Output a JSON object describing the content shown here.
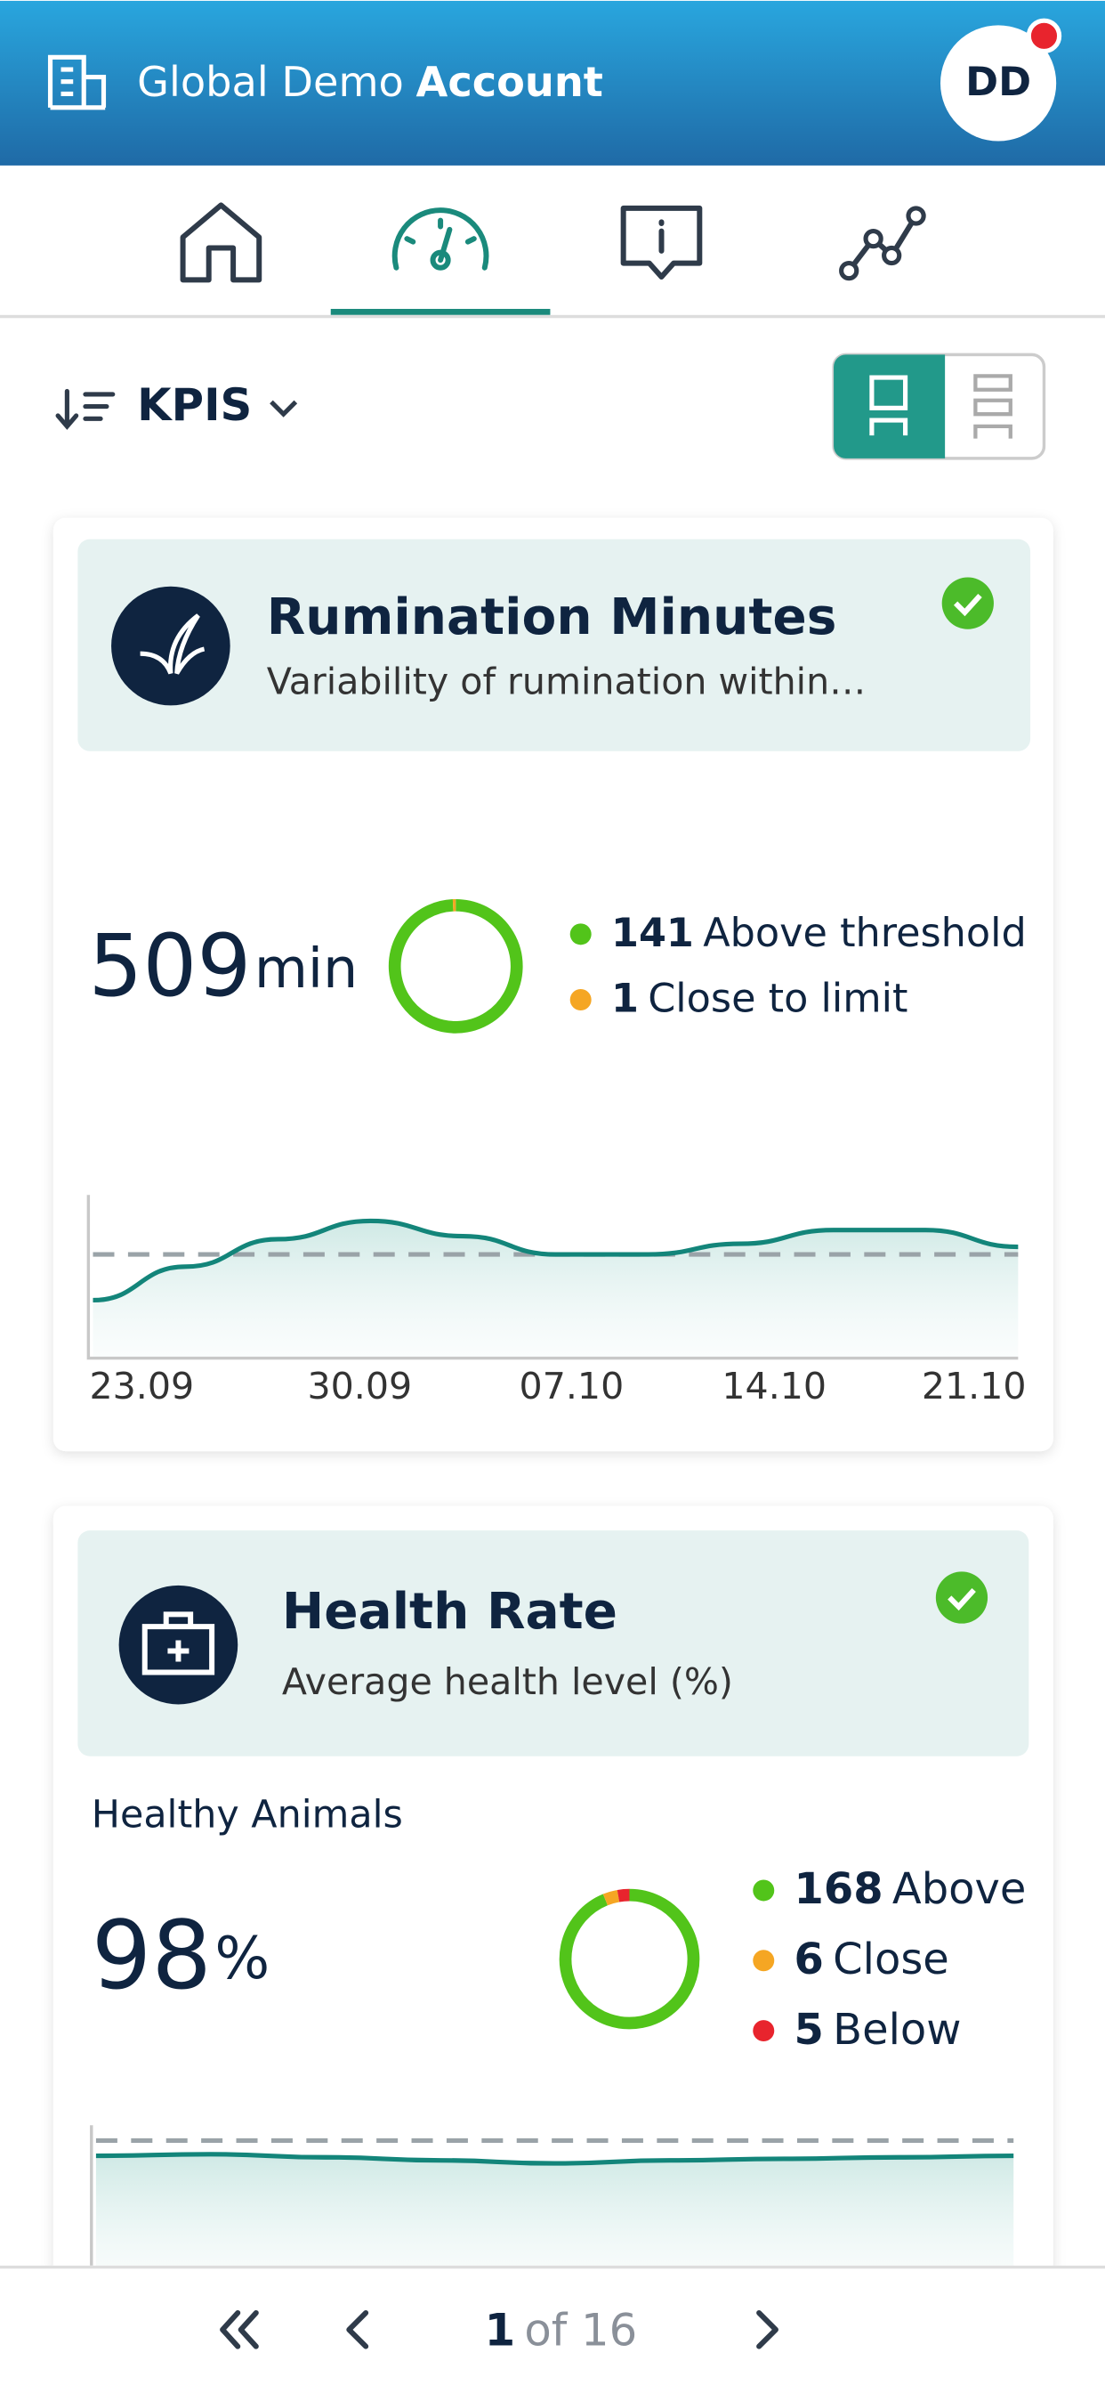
{
  "header": {
    "title_regular": "Global Demo",
    "title_bold": "Account",
    "avatar": "DD"
  },
  "toolbar": {
    "sort_label": "KPIS"
  },
  "cards": [
    {
      "title": "Rumination Minutes",
      "subtitle": "Variability of rumination within…",
      "value": 509,
      "unit": "min",
      "donut": [
        {
          "count": 141,
          "label": "Above threshold",
          "color": "#52c41a"
        },
        {
          "count": 1,
          "label": "Close to limit",
          "color": "#f5a623"
        }
      ],
      "trend": {
        "x_labels": [
          "23.09",
          "30.09",
          "07.10",
          "14.10",
          "21.10"
        ],
        "values": [
          470,
          492,
          510,
          522,
          512,
          500,
          500,
          507,
          516,
          516,
          505
        ],
        "threshold": 500
      }
    },
    {
      "title": "Health Rate",
      "subtitle": "Average health level (%)",
      "section": "Healthy Animals",
      "value": 98,
      "unit": "%",
      "donut": [
        {
          "count": 168,
          "label": "Above",
          "color": "#52c41a"
        },
        {
          "count": 6,
          "label": "Close",
          "color": "#f5a623"
        },
        {
          "count": 5,
          "label": "Below",
          "color": "#e8242d"
        }
      ],
      "trend": {
        "x_labels": [],
        "values": [
          96,
          96.1,
          95.9,
          95.7,
          95.5,
          95.7,
          95.8,
          95.9,
          96
        ],
        "threshold": 97
      }
    }
  ],
  "pagination": {
    "current": 1,
    "total_label": "of 16"
  }
}
